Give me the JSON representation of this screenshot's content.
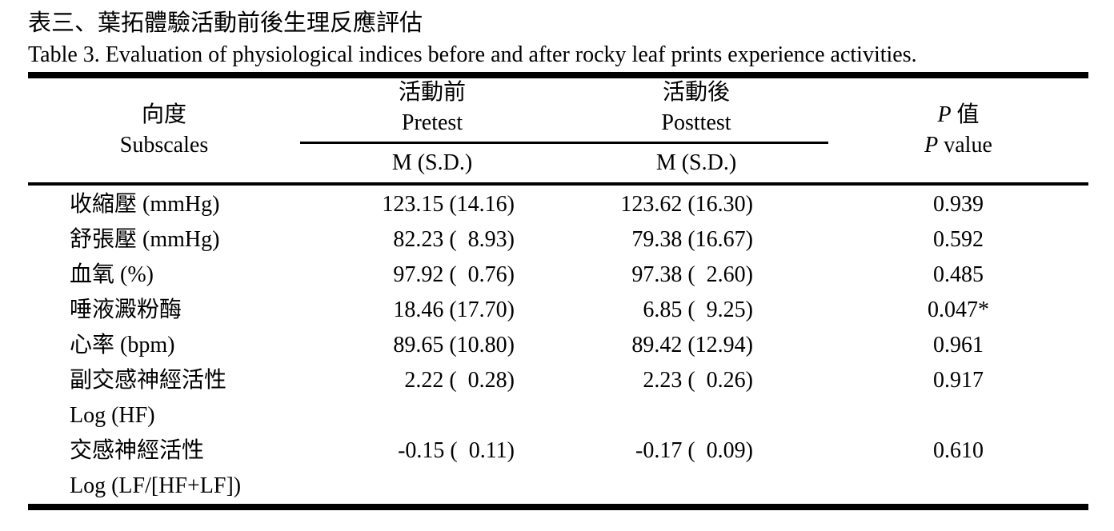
{
  "page": {
    "title_zh": "表三、葉拓體驗活動前後生理反應評估",
    "title_en": "Table 3. Evaluation of physiological indices before and after rocky leaf prints experience activities.",
    "ink_color": "#000000",
    "background_color": "#ffffff"
  },
  "table": {
    "header": {
      "subscales_zh": "向度",
      "subscales_en": "Subscales",
      "pretest_zh": "活動前",
      "pretest_en": "Pretest",
      "posttest_zh": "活動後",
      "posttest_en": "Posttest",
      "pvalue_zh_p": "P",
      "pvalue_zh_suffix": " 值",
      "pvalue_en_p": "P",
      "pvalue_en_suffix": " value",
      "m_sd_pre": "M (S.D.)",
      "m_sd_post": "M (S.D.)"
    },
    "rows": [
      {
        "label": "收縮壓 (mmHg)",
        "label2": "",
        "pretest": "123.15 (14.16)",
        "posttest": "123.62 (16.30)",
        "p": "0.939"
      },
      {
        "label": "舒張壓 (mmHg)",
        "label2": "",
        "pretest": "82.23 (  8.93)",
        "posttest": "79.38 (16.67)",
        "p": "0.592"
      },
      {
        "label": "血氧 (%)",
        "label2": "",
        "pretest": "97.92 (  0.76)",
        "posttest": "97.38 (  2.60)",
        "p": "0.485"
      },
      {
        "label": "唾液澱粉酶",
        "label2": "",
        "pretest": "18.46 (17.70)",
        "posttest": "6.85 (  9.25)",
        "p": "0.047*"
      },
      {
        "label": "心率 (bpm)",
        "label2": "",
        "pretest": "89.65 (10.80)",
        "posttest": "89.42 (12.94)",
        "p": "0.961"
      },
      {
        "label": "副交感神經活性",
        "label2": "Log (HF)",
        "pretest": "2.22 (  0.28)",
        "posttest": "2.23 (  0.26)",
        "p": "0.917"
      },
      {
        "label": "交感神經活性",
        "label2": "Log (LF/[HF+LF])",
        "pretest": "-0.15 (  0.11)",
        "posttest": "-0.17 (  0.09)",
        "p": "0.610"
      }
    ]
  }
}
